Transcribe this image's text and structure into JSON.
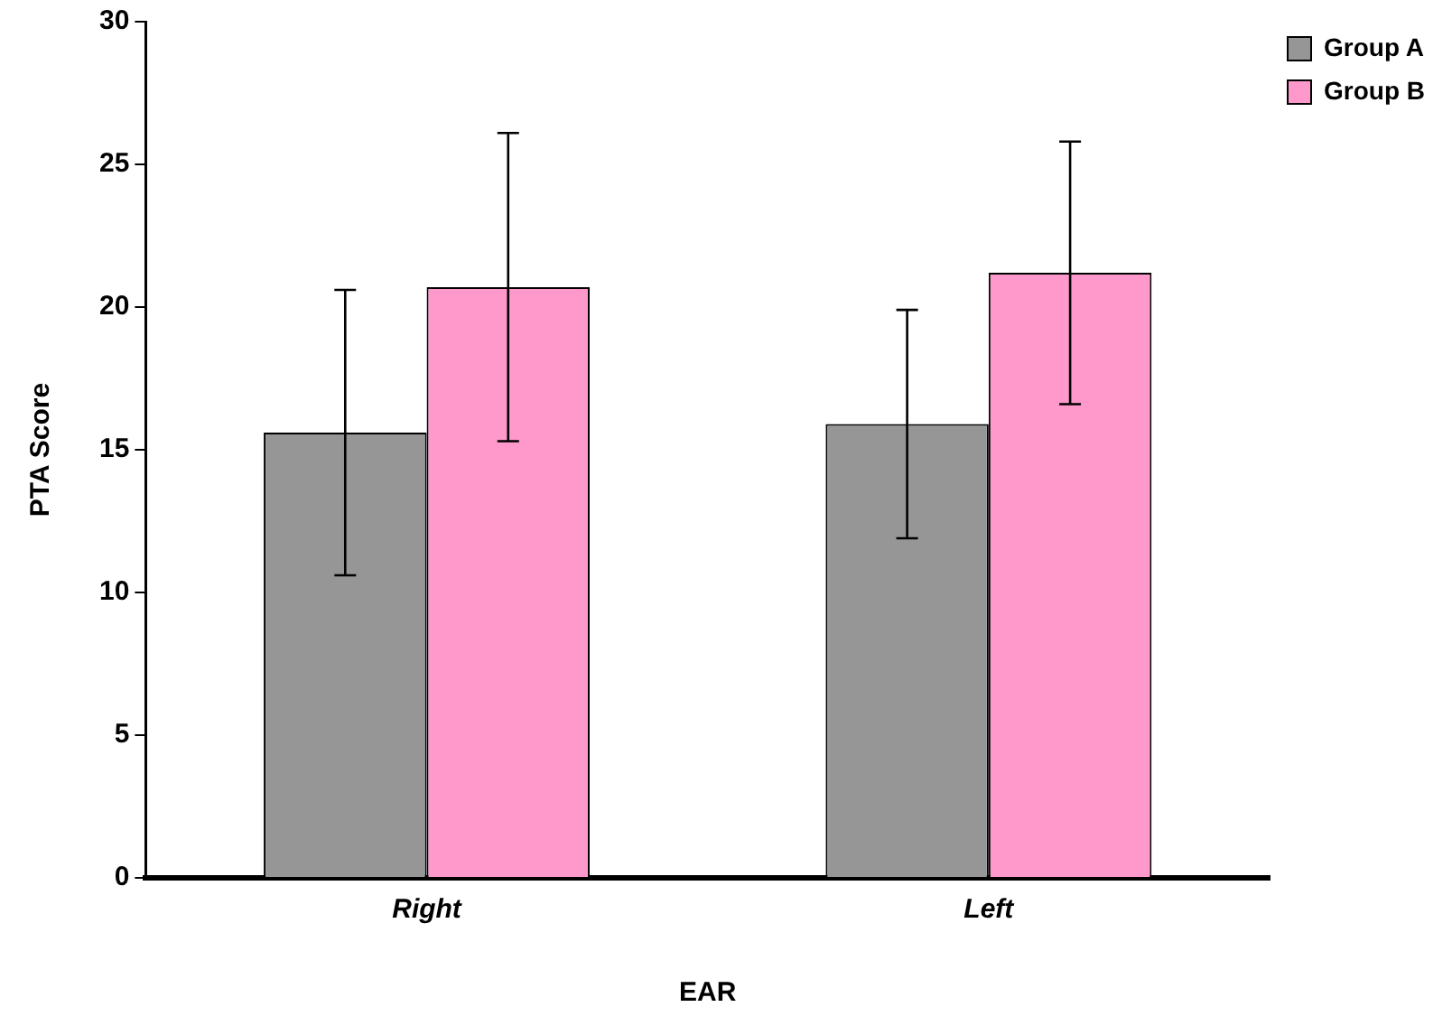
{
  "chart_data": {
    "type": "bar",
    "xlabel": "EAR",
    "ylabel": "PTA Score",
    "categories": [
      "Right",
      "Left"
    ],
    "series": [
      {
        "name": "Group A",
        "color": "#969696",
        "values": [
          15.6,
          15.9
        ],
        "errors": [
          5.0,
          4.0
        ]
      },
      {
        "name": "Group B",
        "color": "#ff99cc",
        "values": [
          20.7,
          21.2
        ],
        "errors": [
          5.4,
          4.6
        ]
      }
    ],
    "ylim": [
      0,
      30
    ],
    "yticks": [
      0,
      5,
      10,
      15,
      20,
      25,
      30
    ],
    "grid": false,
    "legend": "top right"
  }
}
